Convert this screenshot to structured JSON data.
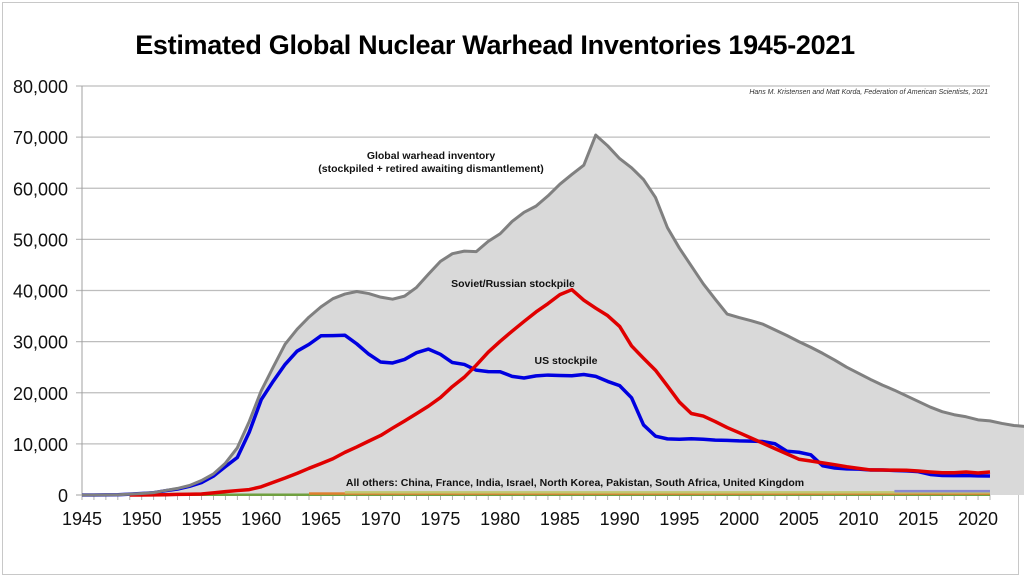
{
  "chart_data": {
    "type": "area",
    "title": "Estimated Global Nuclear Warhead Inventories 1945-2021",
    "credit": "Hans M. Kristensen and Matt Korda, Federation of American Scientists, 2021",
    "xlabel": "",
    "ylabel": "",
    "xlim": [
      1945,
      2021
    ],
    "ylim": [
      0,
      80000
    ],
    "grid": true,
    "yticks": [
      "0",
      "10,000",
      "20,000",
      "30,000",
      "40,000",
      "50,000",
      "60,000",
      "70,000",
      "80,000"
    ],
    "ytick_values": [
      0,
      10000,
      20000,
      30000,
      40000,
      50000,
      60000,
      70000,
      80000
    ],
    "xticks": [
      "1945",
      "1950",
      "1955",
      "1960",
      "1965",
      "1970",
      "1975",
      "1980",
      "1985",
      "1990",
      "1995",
      "2000",
      "2005",
      "2010",
      "2015",
      "2020"
    ],
    "xtick_values": [
      1945,
      1950,
      1955,
      1960,
      1965,
      1970,
      1975,
      1980,
      1985,
      1990,
      1995,
      2000,
      2005,
      2010,
      2015,
      2020
    ],
    "annotations": {
      "global_line1": "Global warhead inventory",
      "global_line2": "(stockpiled + retired awaiting dismantlement)",
      "russia": "Soviet/Russian stockpile",
      "us": "US stockpile",
      "others": "All others: China, France, India, Israel, North Korea, Pakistan, South Africa, United Kingdom"
    },
    "series": [
      {
        "name": "Global warhead inventory",
        "color": "#808080",
        "fill": "#d9d9d9",
        "start_year": 1945,
        "values": [
          2,
          9,
          13,
          50,
          170,
          304,
          463,
          891,
          1290,
          1855,
          2824,
          4121,
          6220,
          9235,
          14388,
          20373,
          25000,
          29500,
          32400,
          34800,
          36800,
          38400,
          39300,
          39800,
          39400,
          38700,
          38300,
          38900,
          40600,
          43200,
          45700,
          47200,
          47700,
          47600,
          49600,
          51100,
          53500,
          55300,
          56500,
          58500,
          60800,
          62700,
          64500,
          70400,
          68300,
          65800,
          64000,
          61700,
          58200,
          52300,
          48300,
          44800,
          41300,
          38300,
          35400,
          34700,
          34100,
          33400,
          32300,
          31200,
          30000,
          28900,
          27700,
          26400,
          25000,
          23800,
          22600,
          21500,
          20500,
          19400,
          18300,
          17200,
          16300,
          15700,
          15300,
          14700,
          14500,
          14000,
          13600,
          13400,
          13100
        ],
        "value_unit": "warheads"
      },
      {
        "name": "US stockpile",
        "color": "#0000e0",
        "start_year": 1945,
        "values": [
          2,
          9,
          13,
          50,
          170,
          299,
          438,
          841,
          1169,
          1703,
          2422,
          3692,
          5543,
          7345,
          12298,
          18638,
          22229,
          25540,
          28133,
          29463,
          31139,
          31175,
          31255,
          29561,
          27552,
          26008,
          25830,
          26516,
          27835,
          28537,
          27519,
          25914,
          25542,
          24418,
          24138,
          24104,
          23208,
          22886,
          23305,
          23459,
          23368,
          23317,
          23575,
          23205,
          22217,
          21392,
          19008,
          13708,
          11511,
          10979,
          10904,
          11011,
          10903,
          10732,
          10685,
          10577,
          10526,
          10457,
          10027,
          8570,
          8360,
          7853,
          5709,
          5273,
          5113,
          5066,
          4897,
          4881,
          4804,
          4717,
          4571,
          4018,
          3822,
          3785,
          3805,
          3750,
          3708
        ]
      },
      {
        "name": "Soviet/Russian stockpile",
        "color": "#e00000",
        "start_year": 1949,
        "values": [
          1,
          5,
          25,
          50,
          120,
          150,
          200,
          426,
          660,
          869,
          1060,
          1605,
          2471,
          3322,
          4238,
          5221,
          6129,
          7089,
          8339,
          9399,
          10538,
          11643,
          13092,
          14478,
          15915,
          17385,
          19055,
          21205,
          23044,
          25393,
          27935,
          30062,
          32049,
          33952,
          35804,
          37431,
          39197,
          40159,
          38107,
          36538,
          35078,
          32980,
          29154,
          26734,
          24403,
          21339,
          18179,
          15942,
          15442,
          14368,
          13188,
          12188,
          11152,
          10114,
          9076,
          8038,
          7000,
          6643,
          6286,
          5929,
          5527,
          5215,
          4904,
          4880,
          4856,
          4833,
          4700,
          4500,
          4350,
          4350,
          4490,
          4310,
          4495
        ]
      },
      {
        "name": "All others",
        "note": "thin stacked bands near zero",
        "bands": [
          {
            "color": "#70a040",
            "from": 1953,
            "to": 2021
          },
          {
            "color": "#e08030",
            "from": 1964,
            "to": 2021
          },
          {
            "color": "#c0c870",
            "from": 1967,
            "to": 2021
          },
          {
            "color": "#8888d0",
            "from": 2013,
            "to": 2021
          }
        ]
      }
    ]
  }
}
